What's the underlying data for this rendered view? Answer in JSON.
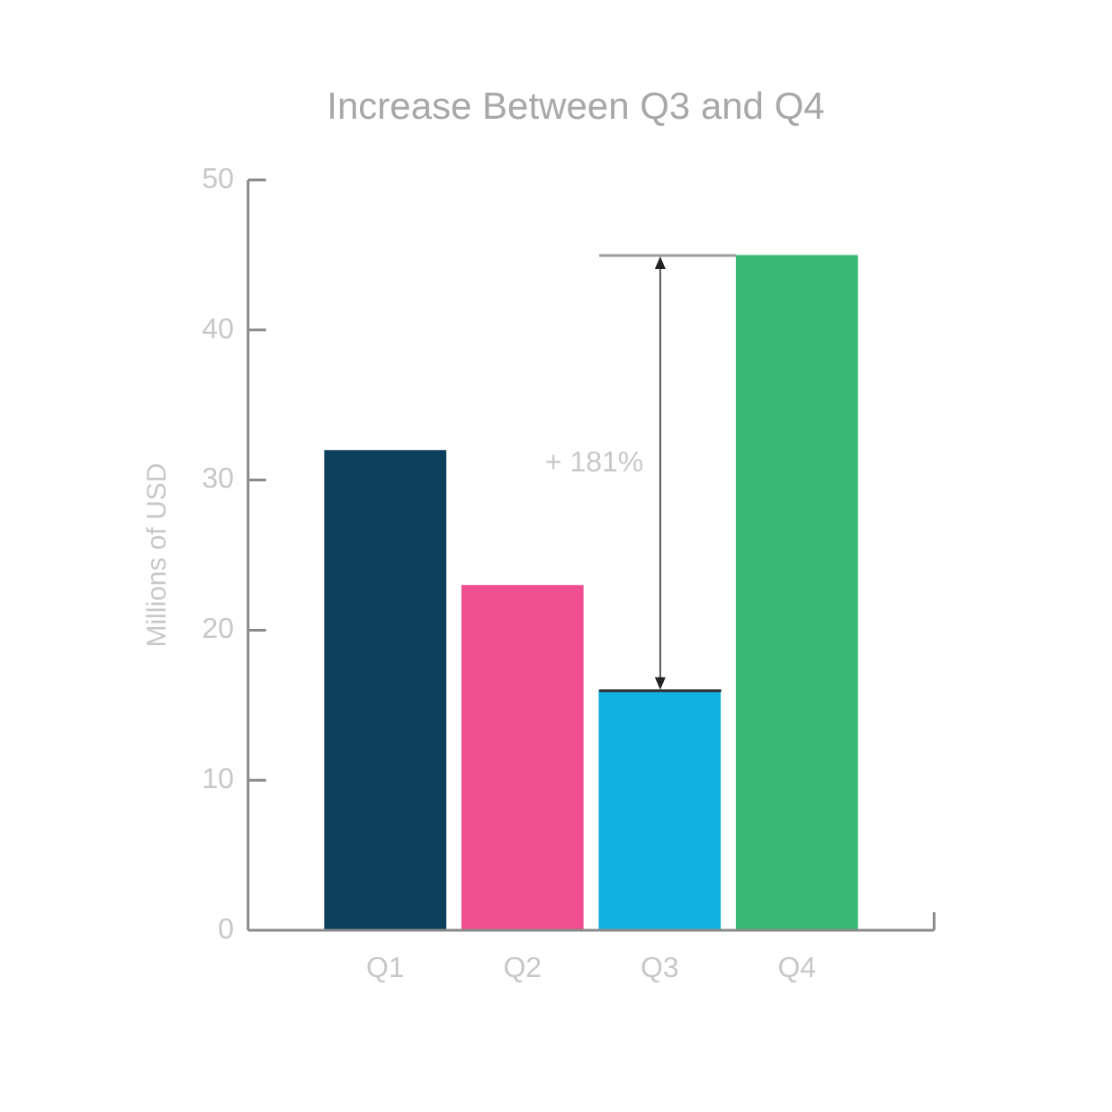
{
  "chart_data": {
    "type": "bar",
    "title": "Increase Between Q3 and Q4",
    "ylabel": "Millions of USD",
    "categories": [
      "Q1",
      "Q2",
      "Q3",
      "Q4"
    ],
    "values": [
      32,
      23,
      16,
      45
    ],
    "colors": [
      "#0b3f5c",
      "#ef4f91",
      "#10b0e0",
      "#35b873"
    ],
    "ylim": [
      0,
      50
    ],
    "yticks": [
      0,
      10,
      20,
      30,
      40,
      50
    ],
    "annotations": [
      "+ 181%"
    ]
  }
}
